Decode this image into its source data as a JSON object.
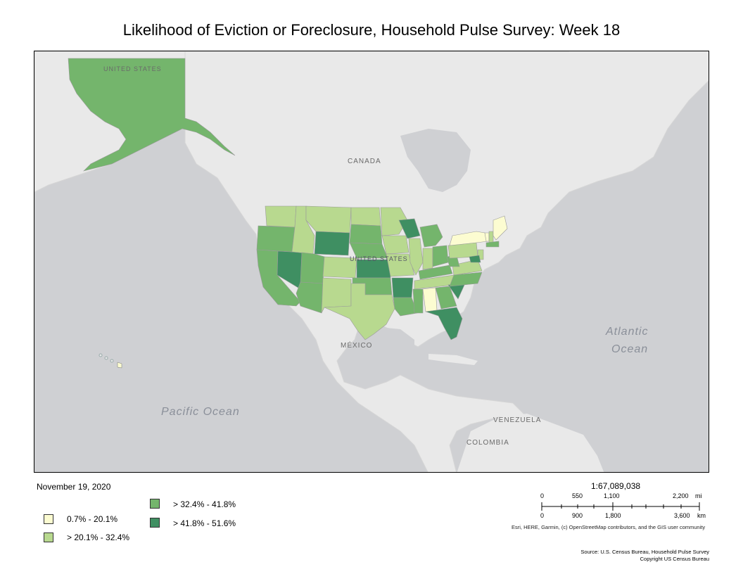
{
  "title": "Likelihood of Eviction or Foreclosure, Household Pulse Survey: Week 18",
  "date": "November 19, 2020",
  "map_labels": {
    "united_states_ak": "UNITED STATES",
    "united_states": "UNITED STATES",
    "canada": "CANADA",
    "mexico": "MÉXICO",
    "venezuela": "VENEZUELA",
    "colombia": "COLOMBIA",
    "pacific": "Pacific Ocean",
    "atlantic_1": "Atlantic",
    "atlantic_2": "Ocean"
  },
  "legend": [
    {
      "label": "0.7% - 20.1%",
      "color": "#fcfcd1"
    },
    {
      "label": "> 20.1% - 32.4%",
      "color": "#b8d98f"
    },
    {
      "label": "> 32.4% - 41.8%",
      "color": "#74b56c"
    },
    {
      "label": "> 41.8% - 51.6%",
      "color": "#3f8f62"
    }
  ],
  "scale": {
    "ratio": "1:67,089,038",
    "mi_ticks": [
      "0",
      "550",
      "1,100",
      "2,200"
    ],
    "mi_unit": "mi",
    "km_ticks": [
      "0",
      "900",
      "1,800",
      "3,600"
    ],
    "km_unit": "km"
  },
  "credits": "Esri, HERE, Garmin, (c) OpenStreetMap contributors, and the GIS user community",
  "source_line1": "Source: U.S. Census Bureau, Household Pulse Survey",
  "source_line2": "Copyright US Census Bureau",
  "map_colors": {
    "water": "#cfd0d3",
    "land": "#e9e9e9",
    "border": "#bdbdbd"
  }
}
